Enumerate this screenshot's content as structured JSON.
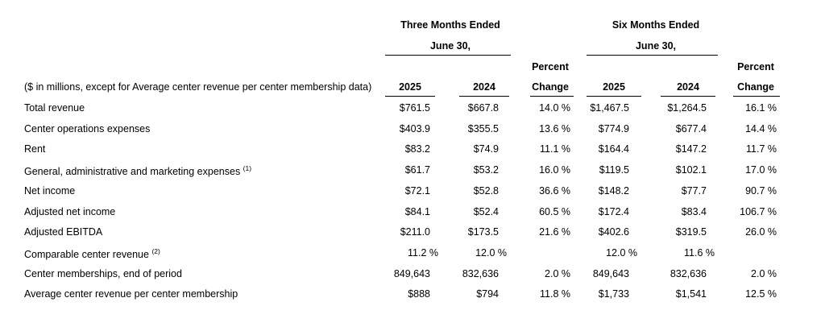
{
  "header": {
    "three_months_line1": "Three Months Ended",
    "three_months_line2": "June 30,",
    "six_months_line1": "Six Months Ended",
    "six_months_line2": "June 30,",
    "percent_label": "Percent",
    "change_label": "Change",
    "units_note": "($ in millions, except for Average center revenue per center membership data)",
    "year_current": "2025",
    "year_prior": "2024"
  },
  "rows": [
    {
      "label": "Total revenue",
      "note": "",
      "q25": "$761.5",
      "q24": "$667.8",
      "qpct": "14.0 %",
      "s25": "$1,467.5",
      "s24": "$1,264.5",
      "spct": "16.1 %"
    },
    {
      "label": "Center operations expenses",
      "note": "",
      "q25": "$403.9",
      "q24": "$355.5",
      "qpct": "13.6 %",
      "s25": "$774.9",
      "s24": "$677.4",
      "spct": "14.4 %"
    },
    {
      "label": "Rent",
      "note": "",
      "q25": "$83.2",
      "q24": "$74.9",
      "qpct": "11.1 %",
      "s25": "$164.4",
      "s24": "$147.2",
      "spct": "11.7 %"
    },
    {
      "label": "General, administrative and marketing expenses ",
      "note": "(1)",
      "q25": "$61.7",
      "q24": "$53.2",
      "qpct": "16.0 %",
      "s25": "$119.5",
      "s24": "$102.1",
      "spct": "17.0 %"
    },
    {
      "label": "Net income",
      "note": "",
      "q25": "$72.1",
      "q24": "$52.8",
      "qpct": "36.6 %",
      "s25": "$148.2",
      "s24": "$77.7",
      "spct": "90.7 %"
    },
    {
      "label": "Adjusted net income",
      "note": "",
      "q25": "$84.1",
      "q24": "$52.4",
      "qpct": "60.5 %",
      "s25": "$172.4",
      "s24": "$83.4",
      "spct": "106.7 %"
    },
    {
      "label": "Adjusted EBITDA",
      "note": "",
      "q25": "$211.0",
      "q24": "$173.5",
      "qpct": "21.6 %",
      "s25": "$402.6",
      "s24": "$319.5",
      "spct": "26.0 %"
    },
    {
      "label": "Comparable center revenue ",
      "note": "(2)",
      "q25": "11.2 %",
      "q24": "12.0 %",
      "qpct": "",
      "s25": "12.0 %",
      "s24": "11.6 %",
      "spct": ""
    },
    {
      "label": "Center memberships, end of period",
      "note": "",
      "q25": "849,643",
      "q24": "832,636",
      "qpct": "2.0 %",
      "s25": "849,643",
      "s24": "832,636",
      "spct": "2.0 %"
    },
    {
      "label": "Average center revenue per center membership",
      "note": "",
      "q25": "$888",
      "q24": "$794",
      "qpct": "11.8 %",
      "s25": "$1,733",
      "s24": "$1,541",
      "spct": "12.5 %"
    }
  ]
}
